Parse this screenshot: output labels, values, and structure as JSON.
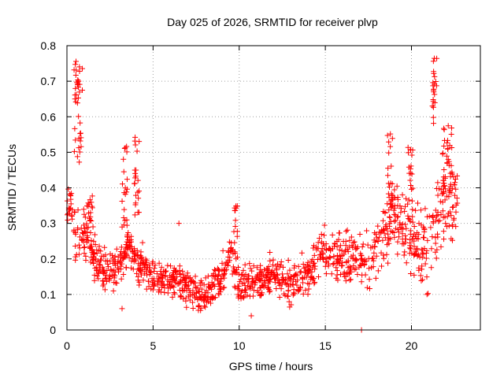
{
  "chart_data": {
    "type": "scatter",
    "title": "Day 025 of 2026, SRMTID for receiver plvp",
    "xlabel": "GPS time / hours",
    "ylabel": "SRMTID / TECUs",
    "xlim": [
      0,
      24
    ],
    "ylim": [
      0,
      0.8
    ],
    "xticks": [
      0,
      5,
      10,
      15,
      20
    ],
    "xtick_labels": [
      "0",
      "5",
      "10",
      "15",
      "20"
    ],
    "yticks": [
      0,
      0.1,
      0.2,
      0.3,
      0.4,
      0.5,
      0.6,
      0.7,
      0.8
    ],
    "ytick_labels": [
      "0",
      "0.1",
      "0.2",
      "0.3",
      "0.4",
      "0.5",
      "0.6",
      "0.7",
      "0.8"
    ],
    "grid": true,
    "marker": "plus",
    "color": "#ff0000",
    "series": [
      {
        "name": "SRMTID",
        "trend": [
          {
            "x": 0.0,
            "y": 0.33
          },
          {
            "x": 0.25,
            "y": 0.36
          },
          {
            "x": 0.5,
            "y": 0.26
          },
          {
            "x": 1.0,
            "y": 0.28
          },
          {
            "x": 1.5,
            "y": 0.22
          },
          {
            "x": 2.0,
            "y": 0.16
          },
          {
            "x": 2.5,
            "y": 0.17
          },
          {
            "x": 3.0,
            "y": 0.19
          },
          {
            "x": 3.5,
            "y": 0.24
          },
          {
            "x": 4.0,
            "y": 0.2
          },
          {
            "x": 4.5,
            "y": 0.17
          },
          {
            "x": 5.0,
            "y": 0.14
          },
          {
            "x": 6.0,
            "y": 0.14
          },
          {
            "x": 7.0,
            "y": 0.12
          },
          {
            "x": 8.0,
            "y": 0.09
          },
          {
            "x": 8.5,
            "y": 0.12
          },
          {
            "x": 9.0,
            "y": 0.15
          },
          {
            "x": 9.5,
            "y": 0.22
          },
          {
            "x": 10.0,
            "y": 0.12
          },
          {
            "x": 11.0,
            "y": 0.14
          },
          {
            "x": 12.0,
            "y": 0.15
          },
          {
            "x": 13.0,
            "y": 0.13
          },
          {
            "x": 14.0,
            "y": 0.15
          },
          {
            "x": 14.5,
            "y": 0.2
          },
          {
            "x": 15.0,
            "y": 0.22
          },
          {
            "x": 16.0,
            "y": 0.2
          },
          {
            "x": 17.0,
            "y": 0.2
          },
          {
            "x": 17.5,
            "y": 0.18
          },
          {
            "x": 18.0,
            "y": 0.22
          },
          {
            "x": 18.5,
            "y": 0.28
          },
          {
            "x": 19.0,
            "y": 0.33
          },
          {
            "x": 19.5,
            "y": 0.3
          },
          {
            "x": 20.0,
            "y": 0.26
          },
          {
            "x": 20.5,
            "y": 0.22
          },
          {
            "x": 21.0,
            "y": 0.24
          },
          {
            "x": 21.5,
            "y": 0.32
          },
          {
            "x": 22.0,
            "y": 0.38
          },
          {
            "x": 22.5,
            "y": 0.36
          }
        ],
        "spread": [
          {
            "x": 0.0,
            "s": 0.05
          },
          {
            "x": 1.5,
            "s": 0.06
          },
          {
            "x": 3.0,
            "s": 0.05
          },
          {
            "x": 5.0,
            "s": 0.045
          },
          {
            "x": 8.0,
            "s": 0.04
          },
          {
            "x": 12.0,
            "s": 0.045
          },
          {
            "x": 15.0,
            "s": 0.05
          },
          {
            "x": 17.0,
            "s": 0.055
          },
          {
            "x": 19.0,
            "s": 0.08
          },
          {
            "x": 21.0,
            "s": 0.09
          },
          {
            "x": 22.5,
            "s": 0.09
          }
        ],
        "bursts": [
          {
            "x0": 0.4,
            "x1": 0.9,
            "lo": 0.45,
            "hi": 0.76,
            "n": 40
          },
          {
            "x0": 1.1,
            "x1": 1.5,
            "lo": 0.25,
            "hi": 0.38,
            "n": 18
          },
          {
            "x0": 3.2,
            "x1": 3.5,
            "lo": 0.28,
            "hi": 0.52,
            "n": 20
          },
          {
            "x0": 3.9,
            "x1": 4.2,
            "lo": 0.32,
            "hi": 0.58,
            "n": 22
          },
          {
            "x0": 9.6,
            "x1": 9.9,
            "lo": 0.24,
            "hi": 0.35,
            "n": 12
          },
          {
            "x0": 18.6,
            "x1": 18.9,
            "lo": 0.34,
            "hi": 0.58,
            "n": 20
          },
          {
            "x0": 19.8,
            "x1": 20.1,
            "lo": 0.3,
            "hi": 0.52,
            "n": 16
          },
          {
            "x0": 21.2,
            "x1": 21.5,
            "lo": 0.55,
            "hi": 0.77,
            "n": 22
          },
          {
            "x0": 21.8,
            "x1": 22.4,
            "lo": 0.38,
            "hi": 0.6,
            "n": 30
          }
        ],
        "outliers": [
          {
            "x": 17.1,
            "y": 0.0
          },
          {
            "x": 6.5,
            "y": 0.3
          },
          {
            "x": 3.2,
            "y": 0.06
          },
          {
            "x": 20.9,
            "y": 0.1
          },
          {
            "x": 10.7,
            "y": 0.04
          }
        ],
        "n_points": 1300,
        "x_range": [
          0.0,
          22.7
        ],
        "seed": 25
      }
    ]
  }
}
